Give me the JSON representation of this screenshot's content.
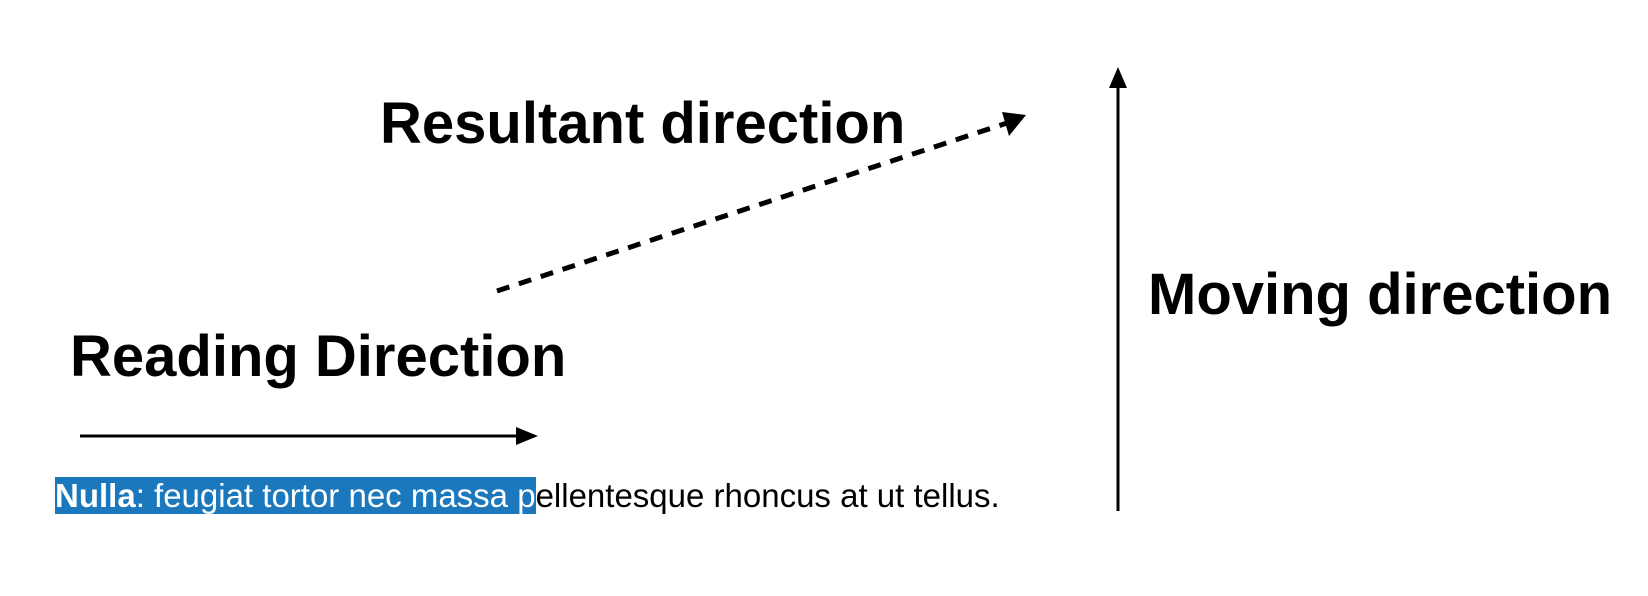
{
  "labels": {
    "resultant": "Resultant direction",
    "reading": "Reading Direction",
    "moving": "Moving direction"
  },
  "sentence": {
    "selected_bold": "Nulla",
    "selected_text": ": feugiat tortor nec massa p",
    "rest_text": "ellentesque rhoncus at ut tellus."
  },
  "colors": {
    "selection": "#1b78bd",
    "selection_text": "#ffffff",
    "ink": "#000000"
  },
  "arrows": [
    {
      "name": "reading-direction",
      "style": "solid",
      "orientation": "horizontal"
    },
    {
      "name": "moving-direction",
      "style": "solid",
      "orientation": "vertical"
    },
    {
      "name": "resultant-direction",
      "style": "dashed",
      "orientation": "diagonal"
    }
  ]
}
